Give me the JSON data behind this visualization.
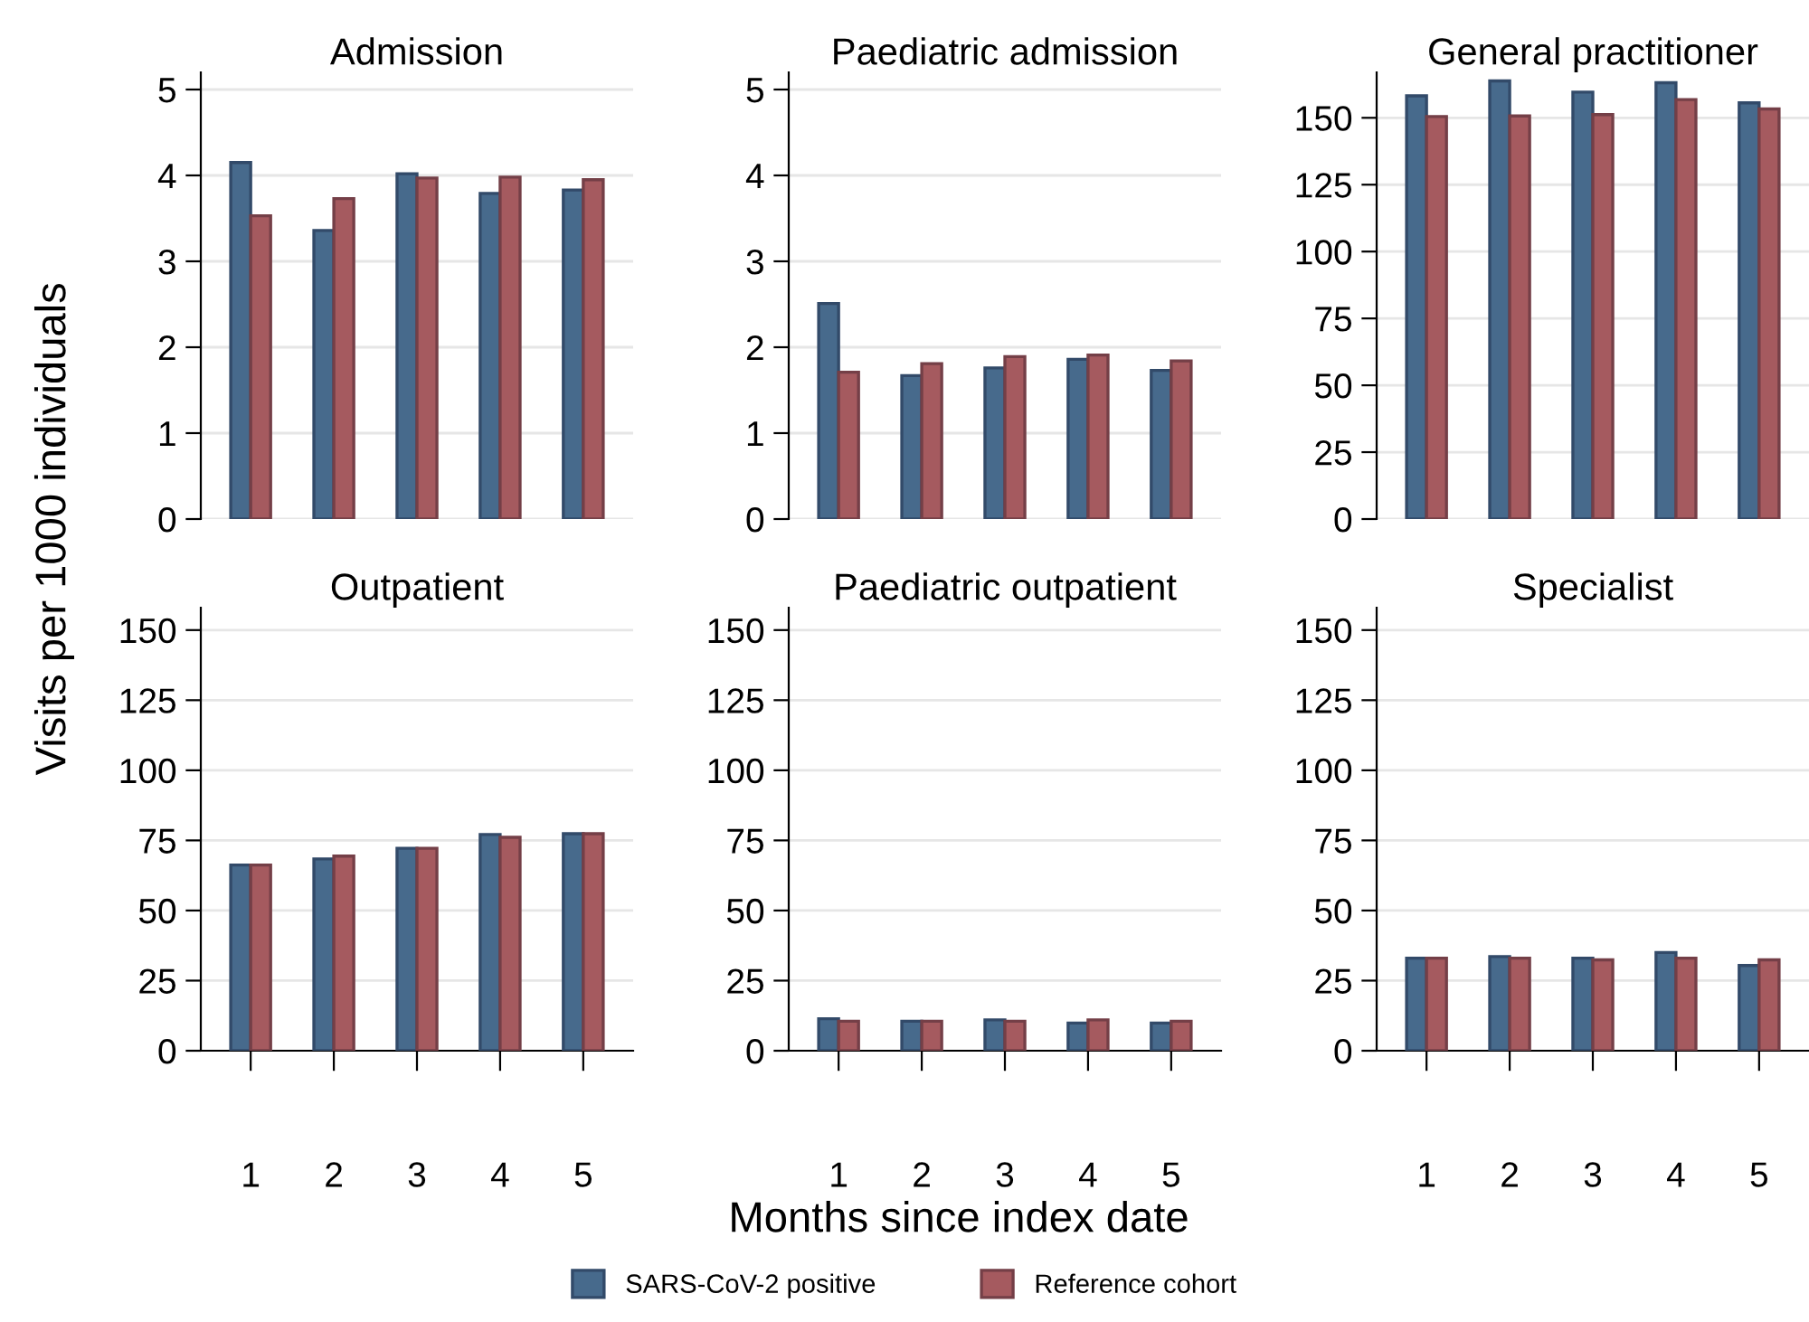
{
  "chart_data": [
    {
      "type": "bar",
      "title": "Admission",
      "ylabel": "Visits per 1000 individuals",
      "legend": "bottom",
      "categories": [
        "1",
        "2",
        "3",
        "4",
        "5"
      ],
      "ylim": [
        0,
        5.2
      ],
      "yticks": [
        0,
        1,
        2,
        3,
        4,
        5
      ],
      "grid": "y",
      "tick_labels": "y",
      "series": [
        {
          "name": "SARS-CoV-2 positive",
          "color": "#476a8c",
          "values": [
            4.15,
            3.36,
            4.02,
            3.79,
            3.83
          ]
        },
        {
          "name": "Reference cohort",
          "color": "#a55a5f",
          "values": [
            3.53,
            3.73,
            3.97,
            3.98,
            3.95
          ]
        }
      ]
    },
    {
      "type": "bar",
      "title": "Paediatric admission",
      "categories": [
        "1",
        "2",
        "3",
        "4",
        "5"
      ],
      "ylim": [
        0,
        5.2
      ],
      "yticks": [
        0,
        1,
        2,
        3,
        4,
        5
      ],
      "grid": "y",
      "tick_labels": "y",
      "series": [
        {
          "color": "#476a8c",
          "values": [
            2.51,
            1.67,
            1.76,
            1.86,
            1.73
          ]
        },
        {
          "color": "#a55a5f",
          "values": [
            1.71,
            1.81,
            1.89,
            1.91,
            1.84
          ]
        }
      ]
    },
    {
      "type": "bar",
      "title": "General practitioner",
      "categories": [
        "1",
        "2",
        "3",
        "4",
        "5"
      ],
      "ylim": [
        0,
        167
      ],
      "yticks": [
        0,
        25,
        50,
        75,
        100,
        125,
        150
      ],
      "grid": "y",
      "tick_labels": "y",
      "series": [
        {
          "color": "#476a8c",
          "values": [
            158.2,
            163.8,
            159.6,
            163.1,
            155.6
          ]
        },
        {
          "color": "#a55a5f",
          "values": [
            150.5,
            150.7,
            151.2,
            156.8,
            153.3
          ]
        }
      ]
    },
    {
      "type": "bar",
      "title": "Outpatient",
      "categories": [
        "1",
        "2",
        "3",
        "4",
        "5"
      ],
      "ylim": [
        0,
        158
      ],
      "yticks": [
        0,
        25,
        50,
        75,
        100,
        125,
        150
      ],
      "grid": "y",
      "series": [
        {
          "color": "#476a8c",
          "values": [
            66.2,
            68.4,
            72.2,
            77.1,
            77.4
          ]
        },
        {
          "color": "#a55a5f",
          "values": [
            66.2,
            69.4,
            72.2,
            76.1,
            77.4
          ]
        }
      ]
    },
    {
      "type": "bar",
      "title": "Paediatric outpatient",
      "xlabel": "Months since index date",
      "categories": [
        "1",
        "2",
        "3",
        "4",
        "5"
      ],
      "ylim": [
        0,
        158
      ],
      "yticks": [
        0,
        25,
        50,
        75,
        100,
        125,
        150
      ],
      "grid": "y",
      "series": [
        {
          "color": "#476a8c",
          "values": [
            11.4,
            10.5,
            11.0,
            9.9,
            9.9
          ]
        },
        {
          "color": "#a55a5f",
          "values": [
            10.5,
            10.5,
            10.5,
            11.0,
            10.5
          ]
        }
      ]
    },
    {
      "type": "bar",
      "title": "Specialist",
      "categories": [
        "1",
        "2",
        "3",
        "4",
        "5"
      ],
      "ylim": [
        0,
        158
      ],
      "yticks": [
        0,
        25,
        50,
        75,
        100,
        125,
        150
      ],
      "grid": "y",
      "series": [
        {
          "color": "#476a8c",
          "values": [
            33.0,
            33.6,
            33.0,
            35.0,
            30.4
          ]
        },
        {
          "color": "#a55a5f",
          "values": [
            33.0,
            33.0,
            32.4,
            33.0,
            32.4
          ]
        }
      ]
    }
  ]
}
